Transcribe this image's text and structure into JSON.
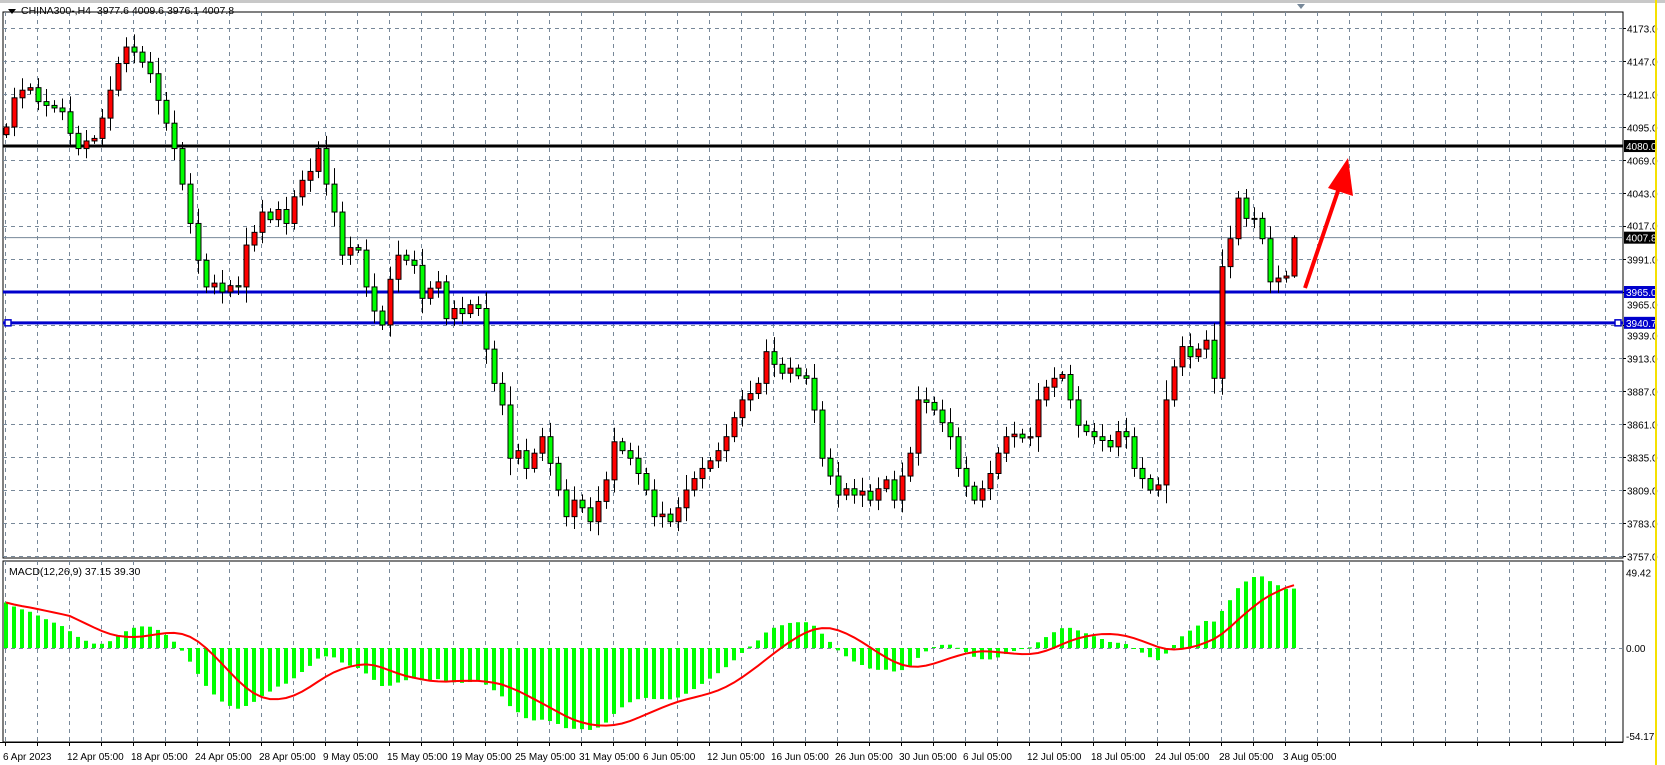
{
  "header": {
    "symbol_label": "CHINA300-,H4",
    "ohlc_label": "3977.6 4009.6 3976.1 4007.8"
  },
  "indicator": {
    "label": "MACD(12,26,9) 37.15 39.30",
    "name": "MACD",
    "params": [
      12,
      26,
      9
    ],
    "macd_value": 37.15,
    "signal_value": 39.3,
    "axis_labels": [
      "49.42",
      "0.00",
      "-54.17"
    ],
    "axis_values": [
      49.42,
      0,
      -54.17
    ],
    "histogram_color": "#00ff00",
    "signal_color": "#ff0000"
  },
  "chart_data": {
    "type": "candlestick",
    "symbol": "CHINA300-",
    "timeframe": "H4",
    "ylim": [
      3757,
      4173
    ],
    "y_ticks": [
      "4173.0",
      "4147.0",
      "4121.0",
      "4095.0",
      "4069.0",
      "4043.0",
      "4017.0",
      "3991.0",
      "3965.0",
      "3939.0",
      "3913.0",
      "3887.0",
      "3861.0",
      "3835.0",
      "3809.0",
      "3783.0",
      "3757.0"
    ],
    "y_tick_values": [
      4173,
      4147,
      4121,
      4095,
      4069,
      4043,
      4017,
      3991,
      3965,
      3939,
      3913,
      3887,
      3861,
      3835,
      3809,
      3783,
      3757
    ],
    "x_labels": [
      "6 Apr 2023",
      "12 Apr 05:00",
      "18 Apr 05:00",
      "24 Apr 05:00",
      "28 Apr 05:00",
      "9 May 05:00",
      "15 May 05:00",
      "19 May 05:00",
      "25 May 05:00",
      "31 May 05:00",
      "6 Jun 05:00",
      "12 Jun 05:00",
      "16 Jun 05:00",
      "26 Jun 05:00",
      "30 Jun 05:00",
      "6 Jul 05:00",
      "12 Jul 05:00",
      "18 Jul 05:00",
      "24 Jul 05:00",
      "28 Jul 05:00",
      "3 Aug 05:00"
    ],
    "bars_per_label": 8,
    "grid": true,
    "bull_color": "#ff0000",
    "bear_color": "#00ff00",
    "closes": [
      4095,
      4118,
      4124,
      4126,
      4115,
      4112,
      4110,
      4107,
      4090,
      4078,
      4084,
      4086,
      4102,
      4124,
      4145,
      4158,
      4154,
      4146,
      4137,
      4116,
      4098,
      4078,
      4050,
      4019,
      3990,
      3969,
      3972,
      3965,
      3970,
      3969,
      4002,
      4012,
      4028,
      4022,
      4030,
      4019,
      4040,
      4053,
      4060,
      4078,
      4050,
      4028,
      3994,
      4000,
      3998,
      3969,
      3950,
      3939,
      3975,
      3994,
      3990,
      3986,
      3960,
      3968,
      3973,
      3944,
      3952,
      3948,
      3955,
      3952,
      3920,
      3893,
      3876,
      3834,
      3840,
      3826,
      3838,
      3851,
      3830,
      3809,
      3788,
      3801,
      3795,
      3784,
      3800,
      3817,
      3847,
      3840,
      3834,
      3822,
      3809,
      3788,
      3790,
      3784,
      3795,
      3809,
      3818,
      3826,
      3832,
      3840,
      3851,
      3866,
      3880,
      3885,
      3893,
      3918,
      3908,
      3901,
      3905,
      3899,
      3897,
      3872,
      3834,
      3820,
      3805,
      3810,
      3805,
      3808,
      3801,
      3810,
      3817,
      3801,
      3820,
      3838,
      3880,
      3878,
      3872,
      3862,
      3851,
      3826,
      3812,
      3801,
      3810,
      3822,
      3838,
      3851,
      3853,
      3850,
      3851,
      3880,
      3890,
      3897,
      3900,
      3880,
      3860,
      3855,
      3851,
      3848,
      3843,
      3855,
      3851,
      3826,
      3818,
      3809,
      3813,
      3880,
      3906,
      3922,
      3914,
      3920,
      3927,
      3897,
      3985,
      4007,
      4039,
      4023,
      4023,
      4007,
      3973,
      3976,
      3977.6,
      4007.8
    ],
    "last_candle": {
      "open": 3977.6,
      "high": 4009.6,
      "low": 3976.1,
      "close": 4007.8
    },
    "horizontal_lines": [
      {
        "label": "4080.0",
        "price": 4080.0,
        "color": "#000000"
      },
      {
        "label": "3965.0",
        "price": 3965.0,
        "color": "#0000cc"
      },
      {
        "label": "3940.7",
        "price": 3940.7,
        "color": "#0000cc"
      }
    ],
    "current_price": {
      "label": "4007.8",
      "price": 4007.8,
      "color": "#778899"
    },
    "annotation": {
      "type": "arrow",
      "color": "#ff0000",
      "direction": "up"
    }
  }
}
